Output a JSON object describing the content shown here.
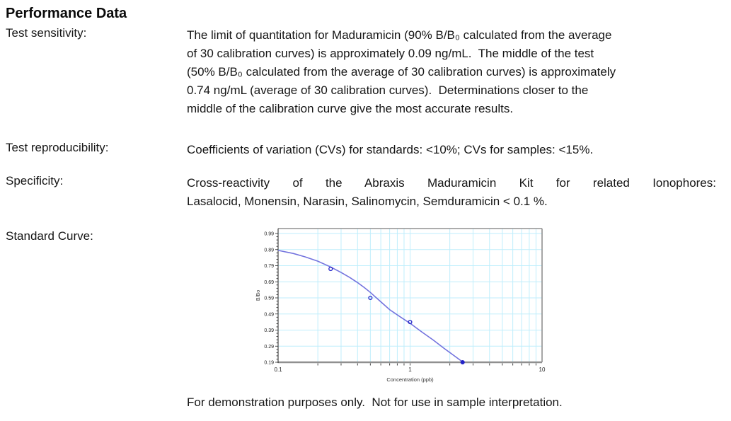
{
  "heading": "Performance Data",
  "rows": {
    "sensitivity": {
      "label": "Test sensitivity:",
      "lines": [
        "The limit of quantitation for Maduramicin (90% B/B₀ calculated from the average",
        "of 30 calibration curves) is approximately 0.09 ng/mL.  The middle of the test",
        "(50% B/B₀ calculated from the average of 30 calibration curves) is approximately",
        "0.74 ng/mL (average of 30 calibration curves).  Determinations closer to the",
        "middle of the calibration curve give the most accurate results."
      ]
    },
    "reproducibility": {
      "label": "Test reproducibility:",
      "text": "Coefficients of variation (CVs) for standards: <10%; CVs for samples: <15%."
    },
    "specificity": {
      "label": "Specificity:",
      "lines": [
        "Cross-reactivity of the Abraxis Maduramicin Kit for related Ionophores:",
        "Lasalocid, Monensin, Narasin, Salinomycin, Semduramicin < 0.1 %."
      ]
    },
    "standard_curve": {
      "label": "Standard Curve:"
    }
  },
  "caption": "For demonstration purposes only.  Not for use in sample interpretation.",
  "chart_data": {
    "type": "line",
    "title": "",
    "xlabel": "Concentration (ppb)",
    "ylabel": "B/Bo",
    "x_scale": "log",
    "xlim": [
      0.1,
      10
    ],
    "ylim": [
      0.19,
      0.99
    ],
    "x_ticks": [
      "0.1",
      "1",
      "10"
    ],
    "y_ticks": [
      0.19,
      0.29,
      0.39,
      0.49,
      0.59,
      0.69,
      0.79,
      0.89,
      0.99
    ],
    "grid": true,
    "points": [
      {
        "x": 0.25,
        "y": 0.77,
        "filled": false
      },
      {
        "x": 0.5,
        "y": 0.59,
        "filled": false
      },
      {
        "x": 1.0,
        "y": 0.44,
        "filled": false
      },
      {
        "x": 2.5,
        "y": 0.19,
        "filled": true
      }
    ],
    "curve": [
      [
        0.1,
        0.885
      ],
      [
        0.13,
        0.866
      ],
      [
        0.16,
        0.845
      ],
      [
        0.2,
        0.818
      ],
      [
        0.25,
        0.782
      ],
      [
        0.3,
        0.748
      ],
      [
        0.35,
        0.716
      ],
      [
        0.4,
        0.685
      ],
      [
        0.45,
        0.654
      ],
      [
        0.5,
        0.624
      ],
      [
        0.6,
        0.566
      ],
      [
        0.7,
        0.517
      ],
      [
        0.85,
        0.47
      ],
      [
        1.0,
        0.432
      ],
      [
        1.2,
        0.384
      ],
      [
        1.5,
        0.328
      ],
      [
        1.8,
        0.278
      ],
      [
        2.1,
        0.238
      ],
      [
        2.5,
        0.192
      ]
    ],
    "colors": {
      "curve": "#7373de",
      "marker": "#2323c8",
      "grid": "#bfeefc",
      "axis": "#909090",
      "tick_text": "#222222"
    }
  }
}
